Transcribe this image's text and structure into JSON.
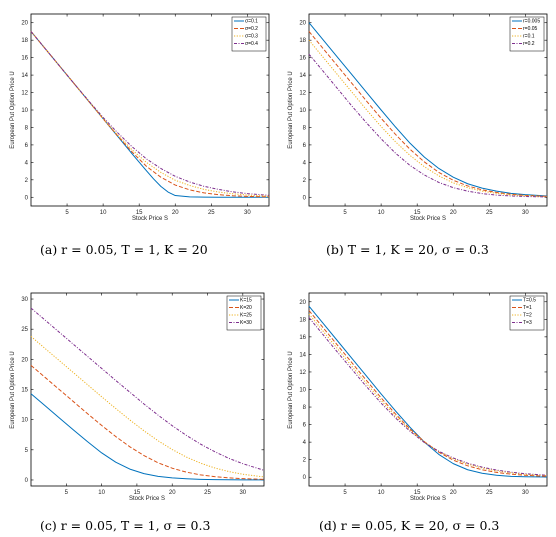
{
  "chart_data": [
    {
      "type": "line",
      "caption": "(a)  r = 0.05, T = 1, K = 20",
      "xlabel": "Stock Price S",
      "ylabel": "European Put Option Price U",
      "xlim": [
        0,
        33
      ],
      "ylim": [
        -1,
        21
      ],
      "xticks": [
        5,
        10,
        15,
        20,
        25,
        30
      ],
      "yticks": [
        0,
        2,
        4,
        6,
        8,
        10,
        12,
        14,
        16,
        18,
        20
      ],
      "legend_position": "top-right",
      "series": [
        {
          "name": "σ=0.1",
          "color": "#0072BD",
          "dash": "solid",
          "x": [
            0,
            2,
            4,
            6,
            8,
            10,
            12,
            14,
            16,
            17,
            18,
            19,
            20,
            22,
            24,
            26,
            28,
            30,
            33
          ],
          "y": [
            19.0,
            17.0,
            15.0,
            13.0,
            11.0,
            9.0,
            7.0,
            5.0,
            3.05,
            2.1,
            1.25,
            0.6,
            0.2,
            0.05,
            0.02,
            0.01,
            0.0,
            0.0,
            0.0
          ]
        },
        {
          "name": "σ=0.2",
          "color": "#D95319",
          "dash": "4,2",
          "x": [
            0,
            2,
            4,
            6,
            8,
            10,
            12,
            14,
            16,
            18,
            20,
            22,
            24,
            26,
            28,
            30,
            33
          ],
          "y": [
            19.0,
            17.0,
            15.0,
            13.0,
            11.0,
            9.0,
            7.05,
            5.2,
            3.55,
            2.3,
            1.4,
            0.85,
            0.5,
            0.3,
            0.17,
            0.1,
            0.05
          ]
        },
        {
          "name": "σ=0.3",
          "color": "#EDB120",
          "dash": "1.2,1.5",
          "x": [
            0,
            2,
            4,
            6,
            8,
            10,
            12,
            14,
            16,
            18,
            20,
            22,
            24,
            26,
            28,
            30,
            33
          ],
          "y": [
            19.0,
            17.0,
            15.0,
            13.0,
            11.0,
            9.0,
            7.15,
            5.45,
            4.0,
            2.85,
            1.95,
            1.35,
            0.9,
            0.6,
            0.4,
            0.25,
            0.12
          ]
        },
        {
          "name": "σ=0.4",
          "color": "#7E2F8E",
          "dash": "3,1.5,1,1.5",
          "x": [
            0,
            2,
            4,
            6,
            8,
            10,
            12,
            14,
            16,
            18,
            20,
            22,
            24,
            26,
            28,
            30,
            33
          ],
          "y": [
            19.0,
            17.0,
            15.0,
            13.0,
            11.05,
            9.15,
            7.4,
            5.8,
            4.4,
            3.3,
            2.4,
            1.75,
            1.25,
            0.9,
            0.62,
            0.42,
            0.22
          ]
        }
      ]
    },
    {
      "type": "line",
      "caption": "(b)  T = 1, K = 20, σ = 0.3",
      "xlabel": "Stock Price S",
      "ylabel": "European Put Option Price U",
      "xlim": [
        0,
        33
      ],
      "ylim": [
        -1,
        21
      ],
      "xticks": [
        5,
        10,
        15,
        20,
        25,
        30
      ],
      "yticks": [
        0,
        2,
        4,
        6,
        8,
        10,
        12,
        14,
        16,
        18,
        20
      ],
      "legend_position": "top-right",
      "series": [
        {
          "name": "r=0.005",
          "color": "#0072BD",
          "dash": "solid",
          "x": [
            0,
            2,
            4,
            6,
            8,
            10,
            12,
            14,
            16,
            18,
            20,
            22,
            24,
            26,
            28,
            30,
            33
          ],
          "y": [
            20.0,
            18.0,
            16.0,
            14.0,
            12.0,
            10.0,
            8.05,
            6.2,
            4.6,
            3.3,
            2.3,
            1.55,
            1.05,
            0.7,
            0.45,
            0.3,
            0.15
          ]
        },
        {
          "name": "r=0.05",
          "color": "#D95319",
          "dash": "4,2",
          "x": [
            0,
            2,
            4,
            6,
            8,
            10,
            12,
            14,
            16,
            18,
            20,
            22,
            24,
            26,
            28,
            30,
            33
          ],
          "y": [
            19.0,
            17.0,
            15.0,
            13.0,
            11.0,
            9.05,
            7.2,
            5.5,
            4.05,
            2.85,
            1.95,
            1.3,
            0.85,
            0.55,
            0.35,
            0.22,
            0.1
          ]
        },
        {
          "name": "r=0.1",
          "color": "#EDB120",
          "dash": "1.2,1.5",
          "x": [
            0,
            2,
            4,
            6,
            8,
            10,
            12,
            14,
            16,
            18,
            20,
            22,
            24,
            26,
            28,
            30,
            33
          ],
          "y": [
            18.0,
            16.0,
            14.0,
            12.0,
            10.0,
            8.1,
            6.35,
            4.8,
            3.5,
            2.45,
            1.65,
            1.1,
            0.7,
            0.45,
            0.28,
            0.17,
            0.08
          ]
        },
        {
          "name": "r=0.2",
          "color": "#7E2F8E",
          "dash": "3,1.5,1,1.5",
          "x": [
            0,
            2,
            4,
            6,
            8,
            10,
            12,
            14,
            16,
            18,
            20,
            22,
            24,
            26,
            28,
            30,
            33
          ],
          "y": [
            16.4,
            14.4,
            12.4,
            10.4,
            8.5,
            6.7,
            5.05,
            3.65,
            2.55,
            1.7,
            1.1,
            0.7,
            0.42,
            0.25,
            0.15,
            0.09,
            0.04
          ]
        }
      ]
    },
    {
      "type": "line",
      "caption": "(c)  r = 0.05, T = 1, σ = 0.3",
      "xlabel": "Stock Price S",
      "ylabel": "European Put Option Price U",
      "xlim": [
        0,
        33
      ],
      "ylim": [
        -1,
        31
      ],
      "xticks": [
        5,
        10,
        15,
        20,
        25,
        30
      ],
      "yticks": [
        0,
        5,
        10,
        15,
        20,
        25,
        30
      ],
      "legend_position": "top-right",
      "series": [
        {
          "name": "K=15",
          "color": "#0072BD",
          "dash": "solid",
          "x": [
            0,
            2,
            4,
            6,
            8,
            10,
            12,
            14,
            16,
            18,
            20,
            22,
            24,
            26,
            28,
            30,
            33
          ],
          "y": [
            14.3,
            12.3,
            10.3,
            8.3,
            6.35,
            4.5,
            2.95,
            1.8,
            1.05,
            0.6,
            0.35,
            0.2,
            0.1,
            0.05,
            0.03,
            0.02,
            0.01
          ]
        },
        {
          "name": "K=20",
          "color": "#D95319",
          "dash": "4,2",
          "x": [
            0,
            2,
            4,
            6,
            8,
            10,
            12,
            14,
            16,
            18,
            20,
            22,
            24,
            26,
            28,
            30,
            33
          ],
          "y": [
            19.0,
            17.0,
            15.0,
            13.0,
            11.0,
            9.05,
            7.2,
            5.5,
            4.05,
            2.85,
            1.95,
            1.3,
            0.85,
            0.55,
            0.35,
            0.22,
            0.1
          ]
        },
        {
          "name": "K=25",
          "color": "#EDB120",
          "dash": "1.2,1.5",
          "x": [
            0,
            2,
            4,
            6,
            8,
            10,
            12,
            14,
            16,
            18,
            20,
            22,
            24,
            26,
            28,
            30,
            33
          ],
          "y": [
            23.8,
            21.8,
            19.8,
            17.8,
            15.8,
            13.8,
            11.85,
            9.95,
            8.15,
            6.5,
            5.05,
            3.8,
            2.8,
            2.0,
            1.4,
            0.95,
            0.5
          ]
        },
        {
          "name": "K=30",
          "color": "#7E2F8E",
          "dash": "3,1.5,1,1.5",
          "x": [
            0,
            2,
            4,
            6,
            8,
            10,
            12,
            14,
            16,
            18,
            20,
            22,
            24,
            26,
            28,
            30,
            33
          ],
          "y": [
            28.5,
            26.5,
            24.5,
            22.5,
            20.5,
            18.5,
            16.5,
            14.55,
            12.6,
            10.75,
            9.0,
            7.4,
            5.95,
            4.7,
            3.6,
            2.7,
            1.6
          ]
        }
      ]
    },
    {
      "type": "line",
      "caption": "(d)  r = 0.05, K = 20, σ = 0.3",
      "xlabel": "Stock Price S",
      "ylabel": "European Put Option Price U",
      "xlim": [
        0,
        33
      ],
      "ylim": [
        -1,
        21
      ],
      "xticks": [
        5,
        10,
        15,
        20,
        25,
        30
      ],
      "yticks": [
        0,
        2,
        4,
        6,
        8,
        10,
        12,
        14,
        16,
        18,
        20
      ],
      "legend_position": "top-right",
      "series": [
        {
          "name": "T=0.5",
          "color": "#0072BD",
          "dash": "solid",
          "x": [
            0,
            2,
            4,
            6,
            8,
            10,
            12,
            14,
            16,
            18,
            20,
            22,
            24,
            26,
            28,
            30,
            33
          ],
          "y": [
            19.5,
            17.5,
            15.5,
            13.5,
            11.5,
            9.5,
            7.55,
            5.7,
            4.0,
            2.6,
            1.55,
            0.85,
            0.45,
            0.22,
            0.1,
            0.05,
            0.02
          ]
        },
        {
          "name": "T=1",
          "color": "#D95319",
          "dash": "4,2",
          "x": [
            0,
            2,
            4,
            6,
            8,
            10,
            12,
            14,
            16,
            18,
            20,
            22,
            24,
            26,
            28,
            30,
            33
          ],
          "y": [
            19.0,
            17.0,
            15.0,
            13.0,
            11.0,
            9.05,
            7.2,
            5.5,
            4.05,
            2.85,
            1.95,
            1.3,
            0.85,
            0.55,
            0.35,
            0.22,
            0.1
          ]
        },
        {
          "name": "T=2",
          "color": "#EDB120",
          "dash": "1.2,1.5",
          "x": [
            0,
            2,
            4,
            6,
            8,
            10,
            12,
            14,
            16,
            18,
            20,
            22,
            24,
            26,
            28,
            30,
            33
          ],
          "y": [
            18.6,
            16.6,
            14.6,
            12.6,
            10.65,
            8.75,
            6.95,
            5.35,
            4.0,
            2.95,
            2.1,
            1.5,
            1.05,
            0.72,
            0.5,
            0.33,
            0.18
          ]
        },
        {
          "name": "T=3",
          "color": "#7E2F8E",
          "dash": "3,1.5,1,1.5",
          "x": [
            0,
            2,
            4,
            6,
            8,
            10,
            12,
            14,
            16,
            18,
            20,
            22,
            24,
            26,
            28,
            30,
            33
          ],
          "y": [
            18.2,
            16.2,
            14.2,
            12.25,
            10.3,
            8.45,
            6.75,
            5.25,
            3.95,
            2.95,
            2.2,
            1.6,
            1.15,
            0.82,
            0.58,
            0.4,
            0.22
          ]
        }
      ]
    }
  ]
}
